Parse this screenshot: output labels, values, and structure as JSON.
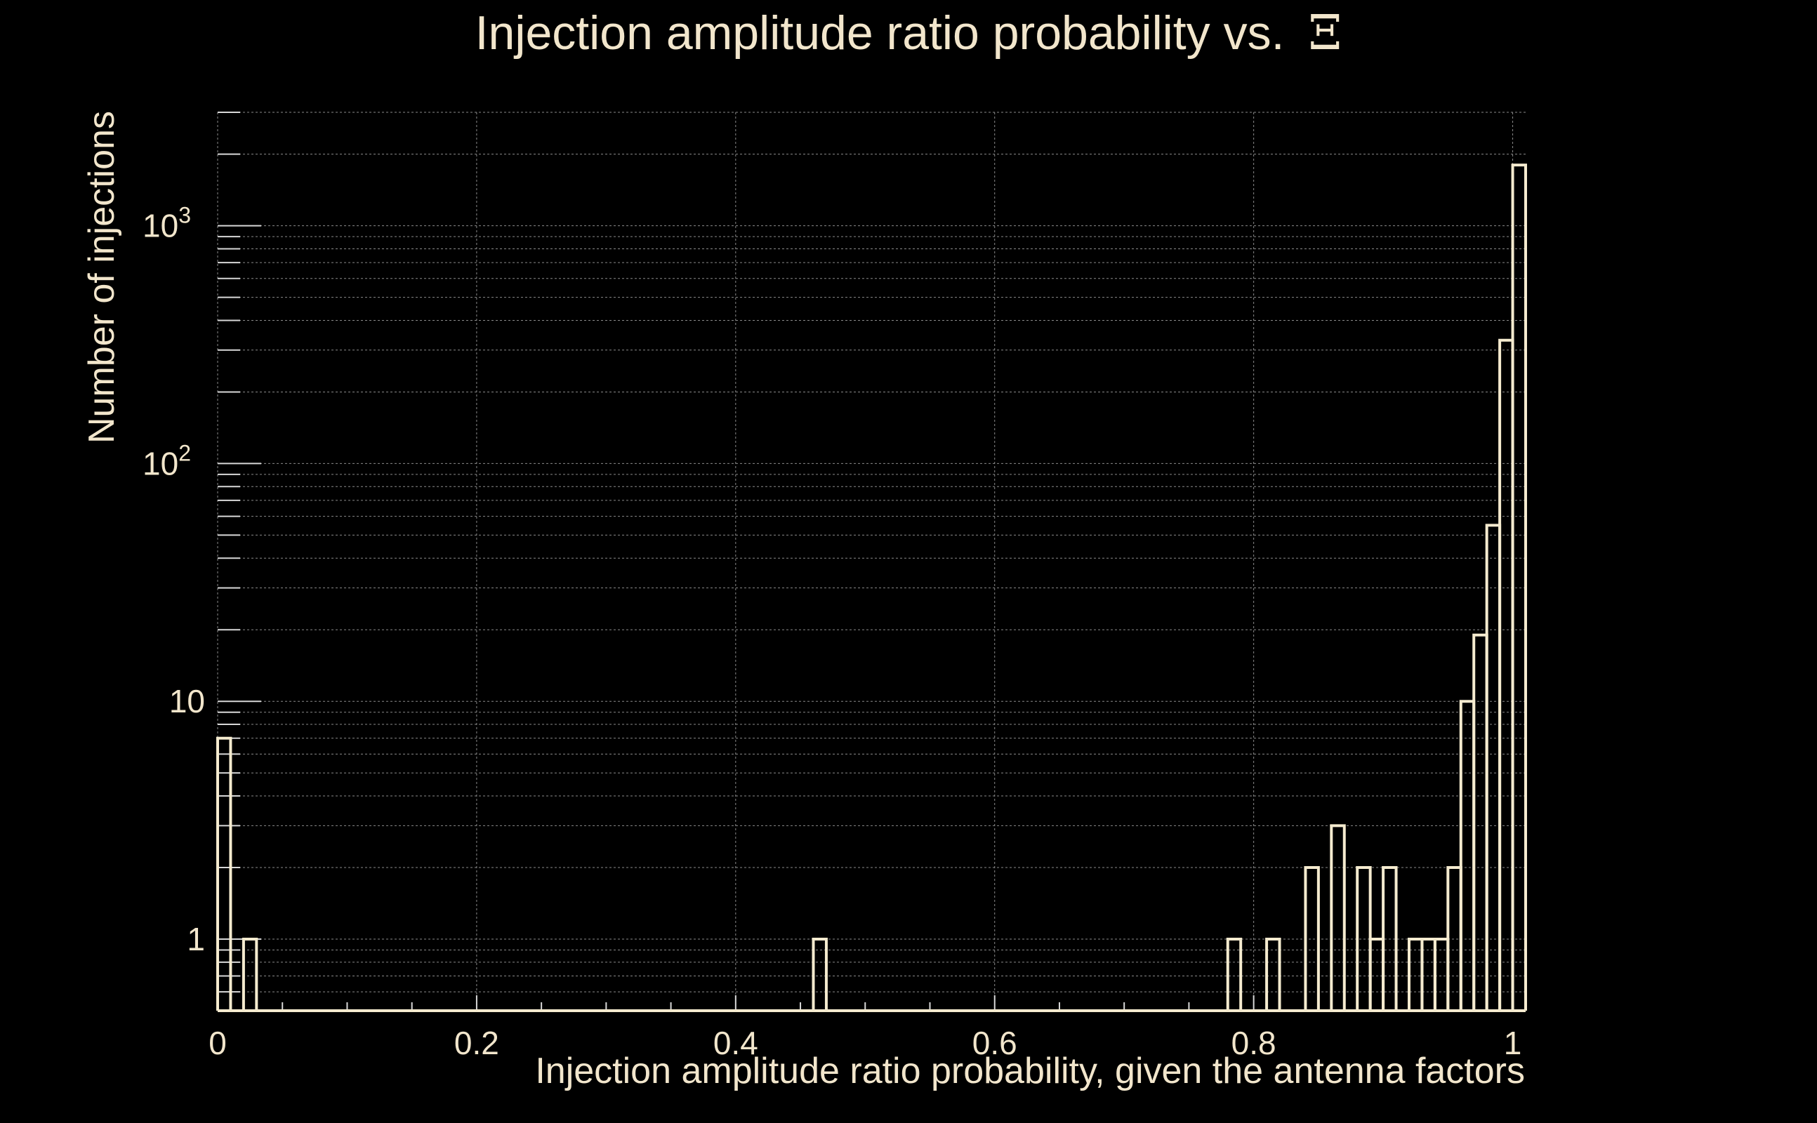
{
  "chart_data": {
    "type": "histogram",
    "title": "Injection amplitude ratio probability vs.",
    "title_symbol": "Ξ",
    "xlabel": "Injection amplitude ratio probability, given the antenna factors",
    "ylabel": "Number of injections",
    "xlim": [
      0,
      1.01
    ],
    "ylim": [
      0.5,
      3000
    ],
    "yscale": "log",
    "grid": true,
    "x_ticks": [
      {
        "value": 0,
        "label": "0"
      },
      {
        "value": 0.2,
        "label": "0.2"
      },
      {
        "value": 0.4,
        "label": "0.4"
      },
      {
        "value": 0.6,
        "label": "0.6"
      },
      {
        "value": 0.8,
        "label": "0.8"
      },
      {
        "value": 1,
        "label": "1"
      }
    ],
    "y_ticks": [
      {
        "value": 1,
        "label": "1",
        "exp": ""
      },
      {
        "value": 10,
        "label": "10",
        "exp": ""
      },
      {
        "value": 100,
        "label": "10",
        "exp": "2"
      },
      {
        "value": 1000,
        "label": "10",
        "exp": "3"
      }
    ],
    "bin_width": 0.01,
    "bins": [
      {
        "x": 0.0,
        "count": 7
      },
      {
        "x": 0.02,
        "count": 1
      },
      {
        "x": 0.46,
        "count": 1
      },
      {
        "x": 0.78,
        "count": 1
      },
      {
        "x": 0.81,
        "count": 1
      },
      {
        "x": 0.84,
        "count": 2
      },
      {
        "x": 0.86,
        "count": 3
      },
      {
        "x": 0.88,
        "count": 2
      },
      {
        "x": 0.89,
        "count": 1
      },
      {
        "x": 0.9,
        "count": 2
      },
      {
        "x": 0.92,
        "count": 1
      },
      {
        "x": 0.93,
        "count": 1
      },
      {
        "x": 0.94,
        "count": 1
      },
      {
        "x": 0.95,
        "count": 2
      },
      {
        "x": 0.96,
        "count": 10
      },
      {
        "x": 0.97,
        "count": 19
      },
      {
        "x": 0.98,
        "count": 55
      },
      {
        "x": 0.99,
        "count": 330
      },
      {
        "x": 1.0,
        "count": 1800
      }
    ],
    "line_color": "#F5EBCF",
    "text_color": "#F2E6CC",
    "background": "#000000"
  }
}
